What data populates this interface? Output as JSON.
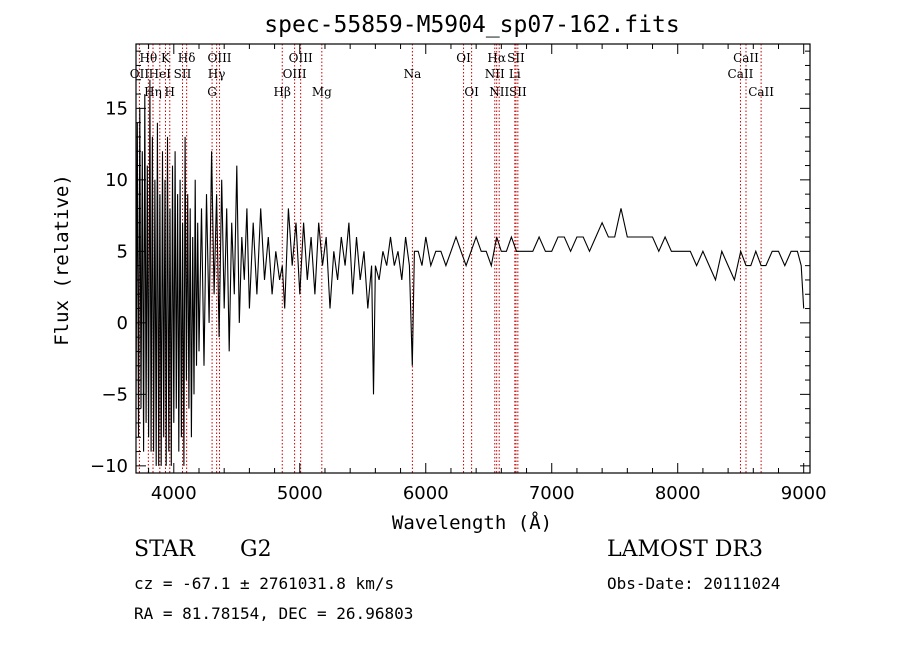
{
  "chart_data": {
    "type": "line",
    "title": "spec-55859-M5904_sp07-162.fits",
    "xlabel": "Wavelength (Å)",
    "ylabel": "Flux (relative)",
    "xlim": [
      3700,
      9050
    ],
    "ylim": [
      -10.5,
      19.5
    ],
    "xticks": [
      4000,
      5000,
      6000,
      7000,
      8000,
      9000
    ],
    "yticks": [
      -10,
      -5,
      0,
      5,
      10,
      15
    ],
    "series": [
      {
        "name": "spectrum",
        "x": [
          3700,
          3710,
          3720,
          3730,
          3740,
          3750,
          3760,
          3770,
          3780,
          3790,
          3800,
          3810,
          3820,
          3830,
          3840,
          3850,
          3860,
          3870,
          3880,
          3890,
          3900,
          3910,
          3920,
          3930,
          3940,
          3950,
          3960,
          3970,
          3980,
          3990,
          4000,
          4010,
          4020,
          4030,
          4040,
          4050,
          4060,
          4070,
          4080,
          4090,
          4100,
          4110,
          4120,
          4130,
          4140,
          4150,
          4160,
          4170,
          4180,
          4190,
          4200,
          4220,
          4240,
          4260,
          4280,
          4300,
          4320,
          4340,
          4360,
          4380,
          4400,
          4420,
          4440,
          4460,
          4480,
          4500,
          4520,
          4540,
          4560,
          4580,
          4600,
          4630,
          4660,
          4690,
          4720,
          4750,
          4780,
          4810,
          4840,
          4861,
          4880,
          4910,
          4940,
          4970,
          5000,
          5030,
          5060,
          5090,
          5120,
          5150,
          5180,
          5210,
          5240,
          5270,
          5300,
          5330,
          5360,
          5390,
          5420,
          5450,
          5480,
          5510,
          5540,
          5570,
          5585,
          5600,
          5630,
          5660,
          5690,
          5720,
          5750,
          5780,
          5810,
          5840,
          5870,
          5893,
          5910,
          5940,
          5970,
          6000,
          6040,
          6080,
          6120,
          6160,
          6200,
          6240,
          6280,
          6320,
          6360,
          6400,
          6440,
          6480,
          6520,
          6563,
          6600,
          6640,
          6680,
          6720,
          6760,
          6800,
          6850,
          6900,
          6950,
          7000,
          7050,
          7100,
          7150,
          7200,
          7250,
          7300,
          7350,
          7400,
          7450,
          7500,
          7550,
          7600,
          7620,
          7650,
          7700,
          7750,
          7800,
          7850,
          7900,
          7950,
          8000,
          8050,
          8100,
          8150,
          8200,
          8250,
          8300,
          8350,
          8400,
          8450,
          8500,
          8542,
          8580,
          8620,
          8662,
          8700,
          8750,
          8800,
          8850,
          8900,
          8950,
          8980,
          9000
        ],
        "values": [
          -6,
          14,
          -8,
          15,
          -6,
          12,
          -9,
          16,
          -7,
          11,
          -8,
          17,
          -9,
          13,
          -9,
          10,
          -10,
          14,
          -10,
          9,
          -10,
          12,
          -8,
          10,
          -10,
          13,
          -9,
          8,
          -10,
          11,
          -7,
          12,
          -6,
          9,
          -9,
          10,
          -8,
          7,
          -10,
          13,
          -4,
          9,
          -6,
          8,
          -8,
          6,
          -5,
          10,
          -3,
          7,
          -2,
          8,
          -3,
          9,
          0,
          12,
          2,
          9,
          -1,
          10,
          1,
          8,
          -2,
          7,
          2,
          11,
          0,
          6,
          3,
          8,
          1,
          7,
          2,
          8,
          3,
          6,
          2,
          5,
          3,
          4,
          1,
          8,
          4,
          7,
          2,
          7,
          3,
          6,
          2,
          7,
          4,
          6,
          1,
          5,
          3,
          6,
          4,
          7,
          2,
          6,
          3,
          5,
          1,
          4,
          -5,
          4,
          3,
          5,
          4,
          6,
          4,
          5,
          3,
          6,
          4,
          -3,
          5,
          5,
          4,
          6,
          4,
          5,
          5,
          4,
          5,
          6,
          5,
          4,
          5,
          6,
          5,
          5,
          4,
          6,
          5,
          5,
          6,
          5,
          5,
          5,
          5,
          6,
          5,
          5,
          6,
          6,
          5,
          6,
          6,
          5,
          6,
          7,
          6,
          6,
          8,
          6,
          6,
          6,
          6,
          6,
          6,
          5,
          6,
          5,
          5,
          5,
          5,
          4,
          5,
          4,
          3,
          5,
          4,
          3,
          5,
          4,
          4,
          5,
          4,
          4,
          5,
          5,
          4,
          5,
          5,
          4,
          1
        ]
      }
    ],
    "lines": [
      {
        "label": "OII",
        "wl": 3727,
        "row": 2
      },
      {
        "label": "Hθ",
        "wl": 3798,
        "row": 1
      },
      {
        "label": "Hη",
        "wl": 3835,
        "row": 3
      },
      {
        "label": "HeI",
        "wl": 3889,
        "row": 2
      },
      {
        "label": "K",
        "wl": 3934,
        "row": 1
      },
      {
        "label": "H",
        "wl": 3968,
        "row": 3
      },
      {
        "label": "SII",
        "wl": 4069,
        "row": 2
      },
      {
        "label": "Hδ",
        "wl": 4102,
        "row": 1
      },
      {
        "label": "G",
        "wl": 4304,
        "row": 3
      },
      {
        "label": "Hγ",
        "wl": 4340,
        "row": 2
      },
      {
        "label": "OIII",
        "wl": 4363,
        "row": 1
      },
      {
        "label": "Hβ",
        "wl": 4861,
        "row": 3
      },
      {
        "label": "OIII",
        "wl": 4959,
        "row": 2
      },
      {
        "label": "OIII",
        "wl": 5007,
        "row": 1
      },
      {
        "label": "Mg",
        "wl": 5175,
        "row": 3
      },
      {
        "label": "Na",
        "wl": 5894,
        "row": 2
      },
      {
        "label": "OI",
        "wl": 6300,
        "row": 1
      },
      {
        "label": "OI",
        "wl": 6364,
        "row": 3
      },
      {
        "label": "NII",
        "wl": 6548,
        "row": 2
      },
      {
        "label": "Hα",
        "wl": 6563,
        "row": 1
      },
      {
        "label": "NII",
        "wl": 6583,
        "row": 3
      },
      {
        "label": "Li",
        "wl": 6707,
        "row": 2
      },
      {
        "label": "SII",
        "wl": 6716,
        "row": 1
      },
      {
        "label": "SII",
        "wl": 6731,
        "row": 3
      },
      {
        "label": "CaII",
        "wl": 8498,
        "row": 2
      },
      {
        "label": "CaII",
        "wl": 8542,
        "row": 1
      },
      {
        "label": "CaII",
        "wl": 8662,
        "row": 3
      }
    ]
  },
  "info": {
    "class": "STAR",
    "subclass": "G2",
    "survey": "LAMOST DR3",
    "cz": "cz = -67.1 ± 2761031.8 km/s",
    "obsdate": "Obs-Date: 20111024",
    "radec": "RA =  81.78154, DEC =  26.96803"
  },
  "colors": {
    "line_marker": "#cc0000",
    "spectrum": "#000000"
  }
}
